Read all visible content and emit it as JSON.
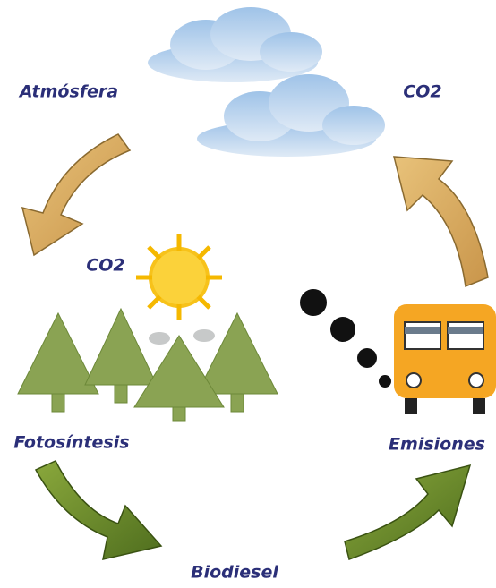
{
  "nodes": [
    {
      "label": "Atmósfera"
    },
    {
      "label": "CO2"
    },
    {
      "label": "CO2"
    },
    {
      "label": "Fotosíntesis"
    },
    {
      "label": "Emisiones"
    },
    {
      "label": "Biodiesel"
    }
  ]
}
